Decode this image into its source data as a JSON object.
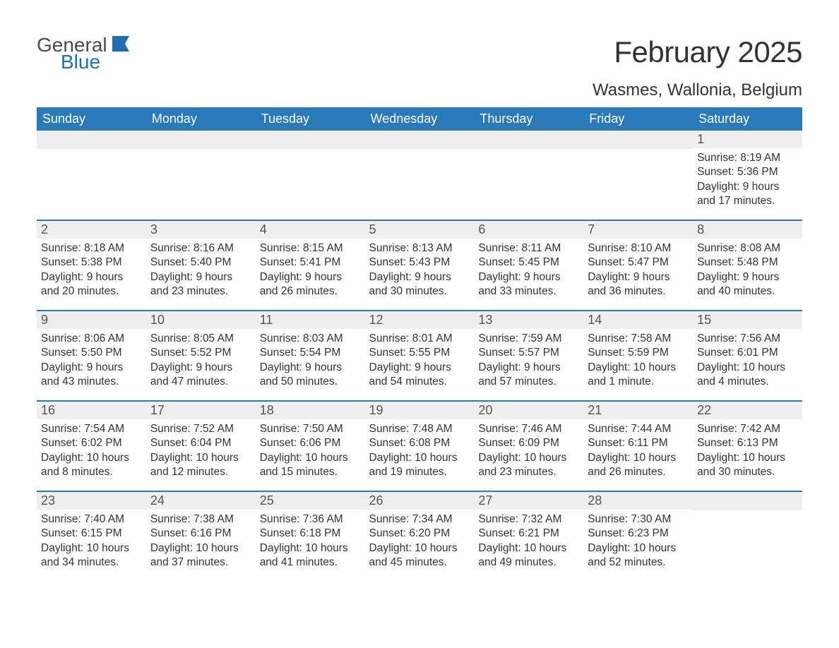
{
  "logo": {
    "word1": "General",
    "word2": "Blue"
  },
  "title": "February 2025",
  "location": "Wasmes, Wallonia, Belgium",
  "colors": {
    "header_bg": "#2a7ab9",
    "header_text": "#ffffff",
    "daynum_bg": "#efefef",
    "text": "#333333",
    "logo_gray": "#4a4a4a",
    "logo_blue": "#1f6fb2"
  },
  "weekdays": [
    "Sunday",
    "Monday",
    "Tuesday",
    "Wednesday",
    "Thursday",
    "Friday",
    "Saturday"
  ],
  "weeks": [
    [
      null,
      null,
      null,
      null,
      null,
      null,
      {
        "n": "1",
        "sun": "Sunrise: 8:19 AM",
        "set": "Sunset: 5:36 PM",
        "dl1": "Daylight: 9 hours",
        "dl2": "and 17 minutes."
      }
    ],
    [
      {
        "n": "2",
        "sun": "Sunrise: 8:18 AM",
        "set": "Sunset: 5:38 PM",
        "dl1": "Daylight: 9 hours",
        "dl2": "and 20 minutes."
      },
      {
        "n": "3",
        "sun": "Sunrise: 8:16 AM",
        "set": "Sunset: 5:40 PM",
        "dl1": "Daylight: 9 hours",
        "dl2": "and 23 minutes."
      },
      {
        "n": "4",
        "sun": "Sunrise: 8:15 AM",
        "set": "Sunset: 5:41 PM",
        "dl1": "Daylight: 9 hours",
        "dl2": "and 26 minutes."
      },
      {
        "n": "5",
        "sun": "Sunrise: 8:13 AM",
        "set": "Sunset: 5:43 PM",
        "dl1": "Daylight: 9 hours",
        "dl2": "and 30 minutes."
      },
      {
        "n": "6",
        "sun": "Sunrise: 8:11 AM",
        "set": "Sunset: 5:45 PM",
        "dl1": "Daylight: 9 hours",
        "dl2": "and 33 minutes."
      },
      {
        "n": "7",
        "sun": "Sunrise: 8:10 AM",
        "set": "Sunset: 5:47 PM",
        "dl1": "Daylight: 9 hours",
        "dl2": "and 36 minutes."
      },
      {
        "n": "8",
        "sun": "Sunrise: 8:08 AM",
        "set": "Sunset: 5:48 PM",
        "dl1": "Daylight: 9 hours",
        "dl2": "and 40 minutes."
      }
    ],
    [
      {
        "n": "9",
        "sun": "Sunrise: 8:06 AM",
        "set": "Sunset: 5:50 PM",
        "dl1": "Daylight: 9 hours",
        "dl2": "and 43 minutes."
      },
      {
        "n": "10",
        "sun": "Sunrise: 8:05 AM",
        "set": "Sunset: 5:52 PM",
        "dl1": "Daylight: 9 hours",
        "dl2": "and 47 minutes."
      },
      {
        "n": "11",
        "sun": "Sunrise: 8:03 AM",
        "set": "Sunset: 5:54 PM",
        "dl1": "Daylight: 9 hours",
        "dl2": "and 50 minutes."
      },
      {
        "n": "12",
        "sun": "Sunrise: 8:01 AM",
        "set": "Sunset: 5:55 PM",
        "dl1": "Daylight: 9 hours",
        "dl2": "and 54 minutes."
      },
      {
        "n": "13",
        "sun": "Sunrise: 7:59 AM",
        "set": "Sunset: 5:57 PM",
        "dl1": "Daylight: 9 hours",
        "dl2": "and 57 minutes."
      },
      {
        "n": "14",
        "sun": "Sunrise: 7:58 AM",
        "set": "Sunset: 5:59 PM",
        "dl1": "Daylight: 10 hours",
        "dl2": "and 1 minute."
      },
      {
        "n": "15",
        "sun": "Sunrise: 7:56 AM",
        "set": "Sunset: 6:01 PM",
        "dl1": "Daylight: 10 hours",
        "dl2": "and 4 minutes."
      }
    ],
    [
      {
        "n": "16",
        "sun": "Sunrise: 7:54 AM",
        "set": "Sunset: 6:02 PM",
        "dl1": "Daylight: 10 hours",
        "dl2": "and 8 minutes."
      },
      {
        "n": "17",
        "sun": "Sunrise: 7:52 AM",
        "set": "Sunset: 6:04 PM",
        "dl1": "Daylight: 10 hours",
        "dl2": "and 12 minutes."
      },
      {
        "n": "18",
        "sun": "Sunrise: 7:50 AM",
        "set": "Sunset: 6:06 PM",
        "dl1": "Daylight: 10 hours",
        "dl2": "and 15 minutes."
      },
      {
        "n": "19",
        "sun": "Sunrise: 7:48 AM",
        "set": "Sunset: 6:08 PM",
        "dl1": "Daylight: 10 hours",
        "dl2": "and 19 minutes."
      },
      {
        "n": "20",
        "sun": "Sunrise: 7:46 AM",
        "set": "Sunset: 6:09 PM",
        "dl1": "Daylight: 10 hours",
        "dl2": "and 23 minutes."
      },
      {
        "n": "21",
        "sun": "Sunrise: 7:44 AM",
        "set": "Sunset: 6:11 PM",
        "dl1": "Daylight: 10 hours",
        "dl2": "and 26 minutes."
      },
      {
        "n": "22",
        "sun": "Sunrise: 7:42 AM",
        "set": "Sunset: 6:13 PM",
        "dl1": "Daylight: 10 hours",
        "dl2": "and 30 minutes."
      }
    ],
    [
      {
        "n": "23",
        "sun": "Sunrise: 7:40 AM",
        "set": "Sunset: 6:15 PM",
        "dl1": "Daylight: 10 hours",
        "dl2": "and 34 minutes."
      },
      {
        "n": "24",
        "sun": "Sunrise: 7:38 AM",
        "set": "Sunset: 6:16 PM",
        "dl1": "Daylight: 10 hours",
        "dl2": "and 37 minutes."
      },
      {
        "n": "25",
        "sun": "Sunrise: 7:36 AM",
        "set": "Sunset: 6:18 PM",
        "dl1": "Daylight: 10 hours",
        "dl2": "and 41 minutes."
      },
      {
        "n": "26",
        "sun": "Sunrise: 7:34 AM",
        "set": "Sunset: 6:20 PM",
        "dl1": "Daylight: 10 hours",
        "dl2": "and 45 minutes."
      },
      {
        "n": "27",
        "sun": "Sunrise: 7:32 AM",
        "set": "Sunset: 6:21 PM",
        "dl1": "Daylight: 10 hours",
        "dl2": "and 49 minutes."
      },
      {
        "n": "28",
        "sun": "Sunrise: 7:30 AM",
        "set": "Sunset: 6:23 PM",
        "dl1": "Daylight: 10 hours",
        "dl2": "and 52 minutes."
      },
      null
    ]
  ]
}
